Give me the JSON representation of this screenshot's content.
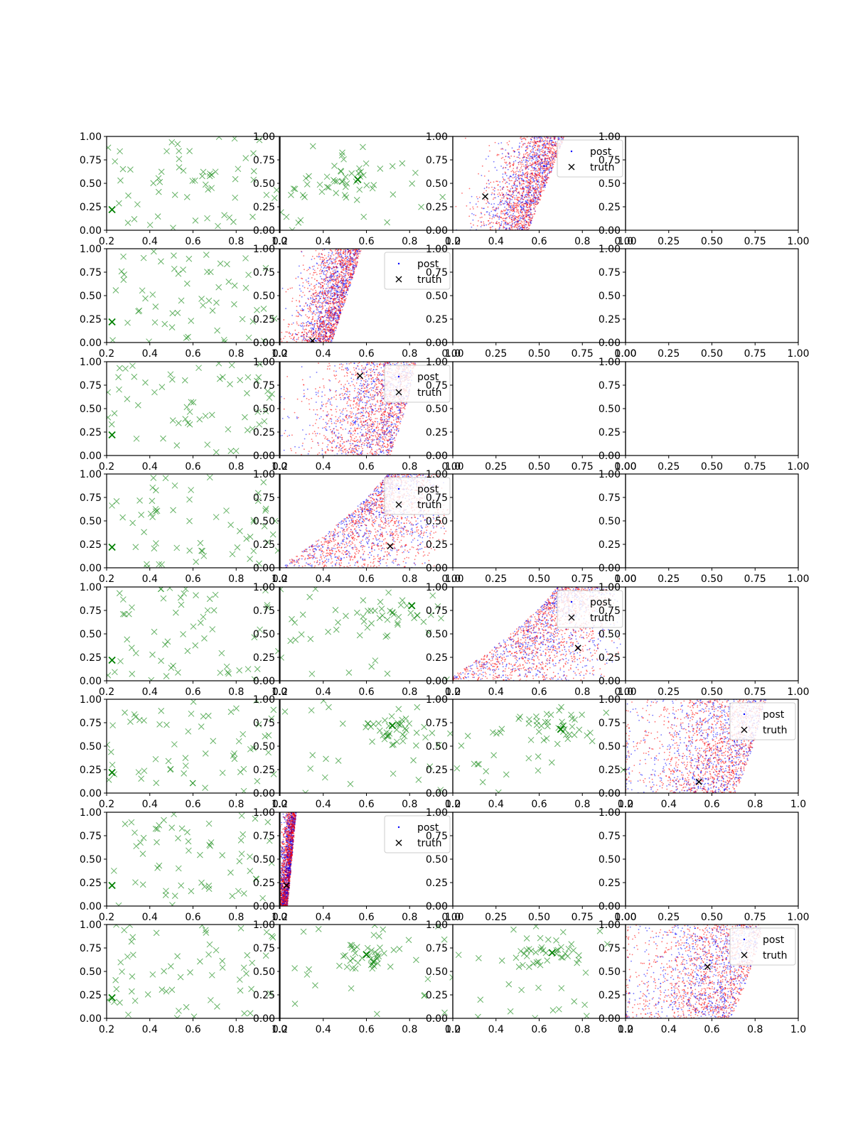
{
  "chart_data": {
    "type": "scatter",
    "layout": {
      "rows": 8,
      "cols": 4
    },
    "colors": {
      "posterior_a": "#ff0000",
      "posterior_b": "#0000ff",
      "prior_marker": "#008000",
      "truth_marker": "#000000"
    },
    "legend": {
      "post_label": "post",
      "truth_label": "truth"
    },
    "ticks": {
      "x_default": [
        "0.2",
        "0.4",
        "0.6",
        "0.8",
        "1.0"
      ],
      "x_empty": [
        "0.00",
        "0.25",
        "0.50",
        "0.75",
        "1.00"
      ],
      "y": [
        "0.00",
        "0.25",
        "0.50",
        "0.75",
        "1.00"
      ]
    },
    "panels": [
      {
        "row": 0,
        "col": 0,
        "kind": "prior",
        "xlim": [
          0.2,
          1.0
        ],
        "ylim": [
          0,
          1
        ],
        "truth": [
          0.225,
          0.22
        ],
        "n_points": 60,
        "seed": 11
      },
      {
        "row": 0,
        "col": 1,
        "kind": "prior",
        "xlim": [
          0.2,
          1.0
        ],
        "ylim": [
          0,
          1
        ],
        "truth": [
          0.56,
          0.54
        ],
        "n_points": 60,
        "seed": 12,
        "cluster": [
          0.46,
          0.52,
          0.09,
          0.07
        ]
      },
      {
        "row": 0,
        "col": 2,
        "kind": "posterior",
        "xlim": [
          0.2,
          1.0
        ],
        "ylim": [
          0,
          1
        ],
        "truth": [
          0.35,
          0.36
        ],
        "legend": "top-right",
        "shape": {
          "type": "band",
          "edge0": 0.55,
          "edge1": 0.72,
          "spread": 0.2,
          "curv": 0.0
        }
      },
      {
        "row": 0,
        "col": 3,
        "kind": "empty",
        "xlim": [
          0,
          1
        ],
        "ylim": [
          0,
          1
        ]
      },
      {
        "row": 1,
        "col": 0,
        "kind": "prior",
        "xlim": [
          0.2,
          1.0
        ],
        "ylim": [
          0,
          1
        ],
        "truth": [
          0.225,
          0.22
        ],
        "n_points": 60,
        "seed": 21
      },
      {
        "row": 1,
        "col": 1,
        "kind": "posterior",
        "xlim": [
          0.2,
          1.0
        ],
        "ylim": [
          0,
          1
        ],
        "truth": [
          0.35,
          0.02
        ],
        "legend": "top-right",
        "shape": {
          "type": "band",
          "edge0": 0.44,
          "edge1": 0.58,
          "spread": 0.16,
          "curv": 0.0
        }
      },
      {
        "row": 1,
        "col": 2,
        "kind": "empty",
        "xlim": [
          0,
          1
        ],
        "ylim": [
          0,
          1
        ]
      },
      {
        "row": 1,
        "col": 3,
        "kind": "empty",
        "xlim": [
          0,
          1
        ],
        "ylim": [
          0,
          1
        ]
      },
      {
        "row": 2,
        "col": 0,
        "kind": "prior",
        "xlim": [
          0.2,
          1.0
        ],
        "ylim": [
          0,
          1
        ],
        "truth": [
          0.225,
          0.22
        ],
        "n_points": 60,
        "seed": 31
      },
      {
        "row": 2,
        "col": 1,
        "kind": "posterior",
        "xlim": [
          0.2,
          1.0
        ],
        "ylim": [
          0,
          1
        ],
        "truth": [
          0.57,
          0.85
        ],
        "legend": "top-right",
        "shape": {
          "type": "band",
          "edge0": 0.72,
          "edge1": 0.84,
          "spread": 0.32,
          "curv": 0.1
        }
      },
      {
        "row": 2,
        "col": 2,
        "kind": "empty",
        "xlim": [
          0,
          1
        ],
        "ylim": [
          0,
          1
        ]
      },
      {
        "row": 2,
        "col": 3,
        "kind": "empty",
        "xlim": [
          0,
          1
        ],
        "ylim": [
          0,
          1
        ]
      },
      {
        "row": 3,
        "col": 0,
        "kind": "prior",
        "xlim": [
          0.2,
          1.0
        ],
        "ylim": [
          0,
          1
        ],
        "truth": [
          0.225,
          0.22
        ],
        "n_points": 60,
        "seed": 41
      },
      {
        "row": 3,
        "col": 1,
        "kind": "posterior",
        "xlim": [
          0.2,
          1.0
        ],
        "ylim": [
          0,
          1
        ],
        "truth": [
          0.71,
          0.23
        ],
        "legend": "top-right",
        "shape": {
          "type": "fan",
          "edge0": 0.98,
          "edge1": 1.0,
          "spread": 0.75,
          "curv": 0.4
        }
      },
      {
        "row": 3,
        "col": 2,
        "kind": "empty",
        "xlim": [
          0,
          1
        ],
        "ylim": [
          0,
          1
        ]
      },
      {
        "row": 3,
        "col": 3,
        "kind": "empty",
        "xlim": [
          0,
          1
        ],
        "ylim": [
          0,
          1
        ]
      },
      {
        "row": 4,
        "col": 0,
        "kind": "prior",
        "xlim": [
          0.2,
          1.0
        ],
        "ylim": [
          0,
          1
        ],
        "truth": [
          0.225,
          0.22
        ],
        "n_points": 60,
        "seed": 51
      },
      {
        "row": 4,
        "col": 1,
        "kind": "prior",
        "xlim": [
          0.2,
          1.0
        ],
        "ylim": [
          0,
          1
        ],
        "truth": [
          0.81,
          0.8
        ],
        "n_points": 60,
        "seed": 52,
        "cluster": [
          0.72,
          0.72,
          0.12,
          0.12
        ]
      },
      {
        "row": 4,
        "col": 2,
        "kind": "posterior",
        "xlim": [
          0.2,
          1.0
        ],
        "ylim": [
          0,
          1
        ],
        "truth": [
          0.78,
          0.35
        ],
        "legend": "top-right",
        "shape": {
          "type": "fan",
          "edge0": 0.99,
          "edge1": 1.0,
          "spread": 0.78,
          "curv": 0.45
        }
      },
      {
        "row": 4,
        "col": 3,
        "kind": "empty",
        "xlim": [
          0,
          1
        ],
        "ylim": [
          0,
          1
        ]
      },
      {
        "row": 5,
        "col": 0,
        "kind": "prior",
        "xlim": [
          0.2,
          1.0
        ],
        "ylim": [
          0,
          1
        ],
        "truth": [
          0.225,
          0.22
        ],
        "n_points": 60,
        "seed": 61
      },
      {
        "row": 5,
        "col": 1,
        "kind": "prior",
        "xlim": [
          0.2,
          1.0
        ],
        "ylim": [
          0,
          1
        ],
        "truth": [
          0.72,
          0.72
        ],
        "n_points": 60,
        "seed": 62,
        "cluster": [
          0.7,
          0.68,
          0.1,
          0.1
        ]
      },
      {
        "row": 5,
        "col": 2,
        "kind": "prior",
        "xlim": [
          0.2,
          1.0
        ],
        "ylim": [
          0,
          1
        ],
        "truth": [
          0.7,
          0.68
        ],
        "n_points": 60,
        "seed": 63,
        "cluster": [
          0.68,
          0.7,
          0.08,
          0.09
        ]
      },
      {
        "row": 5,
        "col": 3,
        "kind": "posterior",
        "xlim": [
          0.2,
          1.0
        ],
        "ylim": [
          0,
          1
        ],
        "truth": [
          0.54,
          0.12
        ],
        "legend": "top-right",
        "shape": {
          "type": "band",
          "edge0": 0.72,
          "edge1": 0.86,
          "spread": 0.4,
          "curv": 0.1
        }
      },
      {
        "row": 6,
        "col": 0,
        "kind": "prior",
        "xlim": [
          0.2,
          1.0
        ],
        "ylim": [
          0,
          1
        ],
        "truth": [
          0.225,
          0.22
        ],
        "n_points": 60,
        "seed": 71
      },
      {
        "row": 6,
        "col": 1,
        "kind": "posterior",
        "xlim": [
          0.2,
          1.0
        ],
        "ylim": [
          0,
          1
        ],
        "truth": [
          0.23,
          0.22
        ],
        "legend": "top-right",
        "shape": {
          "type": "thin",
          "edge0": 0.235,
          "edge1": 0.275,
          "spread": 0.04,
          "curv": 0.0
        }
      },
      {
        "row": 6,
        "col": 2,
        "kind": "empty",
        "xlim": [
          0,
          1
        ],
        "ylim": [
          0,
          1
        ]
      },
      {
        "row": 6,
        "col": 3,
        "kind": "empty",
        "xlim": [
          0,
          1
        ],
        "ylim": [
          0,
          1
        ]
      },
      {
        "row": 7,
        "col": 0,
        "kind": "prior",
        "xlim": [
          0.2,
          1.0
        ],
        "ylim": [
          0,
          1
        ],
        "truth": [
          0.225,
          0.22
        ],
        "n_points": 60,
        "seed": 81
      },
      {
        "row": 7,
        "col": 1,
        "kind": "prior",
        "xlim": [
          0.2,
          1.0
        ],
        "ylim": [
          0,
          1
        ],
        "truth": [
          0.6,
          0.68
        ],
        "n_points": 60,
        "seed": 82,
        "cluster": [
          0.6,
          0.66,
          0.08,
          0.08
        ]
      },
      {
        "row": 7,
        "col": 2,
        "kind": "prior",
        "xlim": [
          0.2,
          1.0
        ],
        "ylim": [
          0,
          1
        ],
        "truth": [
          0.66,
          0.7
        ],
        "n_points": 60,
        "seed": 83,
        "cluster": [
          0.64,
          0.68,
          0.07,
          0.07
        ]
      },
      {
        "row": 7,
        "col": 3,
        "kind": "posterior",
        "xlim": [
          0.2,
          1.0
        ],
        "ylim": [
          0,
          1
        ],
        "truth": [
          0.58,
          0.55
        ],
        "legend": "top-right",
        "shape": {
          "type": "band",
          "edge0": 0.7,
          "edge1": 0.85,
          "spread": 0.42,
          "curv": 0.1
        }
      }
    ]
  }
}
